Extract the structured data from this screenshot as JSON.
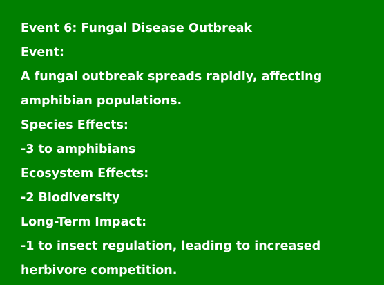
{
  "event_card": {
    "title": "Event 6: Fungal Disease Outbreak",
    "event_heading": "Event:",
    "event_description_line1": "A fungal outbreak spreads rapidly, affecting",
    "event_description_line2": "amphibian populations.",
    "species_heading": "Species Effects:",
    "species_effect": "-3 to amphibians",
    "ecosystem_heading": "Ecosystem Effects:",
    "ecosystem_effect": "-2 Biodiversity",
    "longterm_heading": "Long-Term Impact:",
    "longterm_effect_line1": "-1 to insect regulation, leading to increased",
    "longterm_effect_line2": "herbivore competition."
  },
  "colors": {
    "background": "#008000",
    "text": "#ffffff"
  }
}
